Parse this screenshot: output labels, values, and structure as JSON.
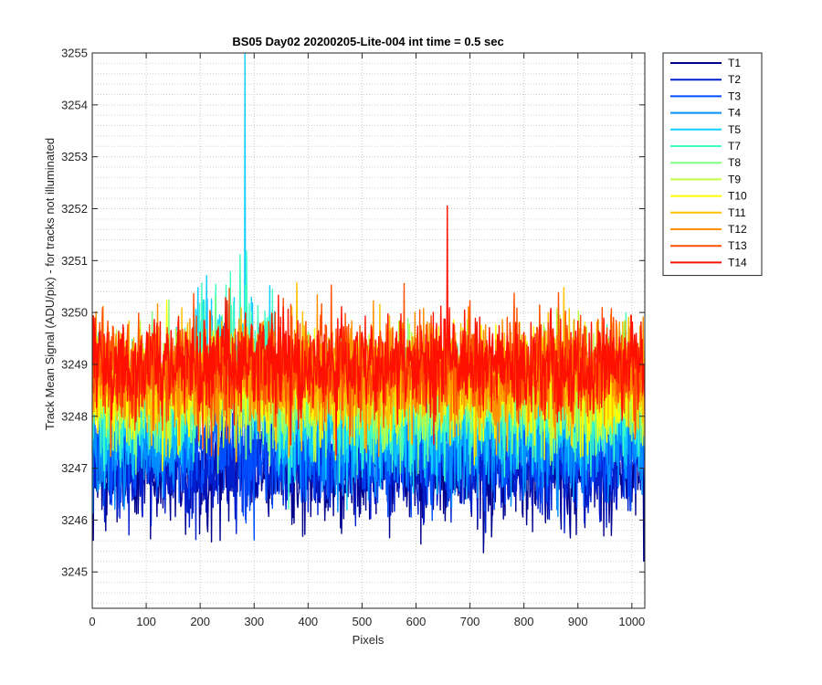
{
  "chart_data": {
    "type": "line",
    "title": "BS05 Day02 20200205-Lite-004 int time = 0.5 sec",
    "xlabel": "Pixels",
    "ylabel": "Track Mean Signal (ADU/pix) - for tracks not illuminated",
    "xlim": [
      0,
      1024
    ],
    "ylim": [
      3244.3,
      3255
    ],
    "xticks": [
      0,
      100,
      200,
      300,
      400,
      500,
      600,
      700,
      800,
      900,
      1000
    ],
    "yticks": [
      3245,
      3246,
      3247,
      3248,
      3249,
      3250,
      3251,
      3252,
      3253,
      3254,
      3255
    ],
    "grid": true,
    "minor_grid": true,
    "legend_position": "outside-top-right",
    "series": [
      {
        "name": "T1",
        "color": "#00008f",
        "mean": 3247.0,
        "spread": 1.0
      },
      {
        "name": "T2",
        "color": "#0020d0",
        "mean": 3247.1,
        "spread": 0.95
      },
      {
        "name": "T3",
        "color": "#0050ff",
        "mean": 3247.4,
        "spread": 0.95
      },
      {
        "name": "T4",
        "color": "#0090ff",
        "mean": 3247.6,
        "spread": 1.0
      },
      {
        "name": "T5",
        "color": "#10d0ff",
        "mean": 3248.0,
        "spread": 1.05
      },
      {
        "name": "T7",
        "color": "#40ffc0",
        "mean": 3248.2,
        "spread": 1.0
      },
      {
        "name": "T8",
        "color": "#80ff80",
        "mean": 3248.4,
        "spread": 0.95
      },
      {
        "name": "T9",
        "color": "#c0ff40",
        "mean": 3248.5,
        "spread": 0.95
      },
      {
        "name": "T10",
        "color": "#ffff00",
        "mean": 3248.6,
        "spread": 0.95
      },
      {
        "name": "T11",
        "color": "#ffc000",
        "mean": 3248.7,
        "spread": 0.95
      },
      {
        "name": "T12",
        "color": "#ff9000",
        "mean": 3248.8,
        "spread": 0.9
      },
      {
        "name": "T13",
        "color": "#ff5000",
        "mean": 3248.9,
        "spread": 0.9
      },
      {
        "name": "T14",
        "color": "#ff1000",
        "mean": 3249.0,
        "spread": 0.85
      }
    ],
    "annotations": [
      {
        "series": "T5",
        "x": 283,
        "y": 3255,
        "note": "peak"
      },
      {
        "series": "T14",
        "x": 658,
        "y": 3252.05,
        "note": "spike"
      }
    ]
  }
}
